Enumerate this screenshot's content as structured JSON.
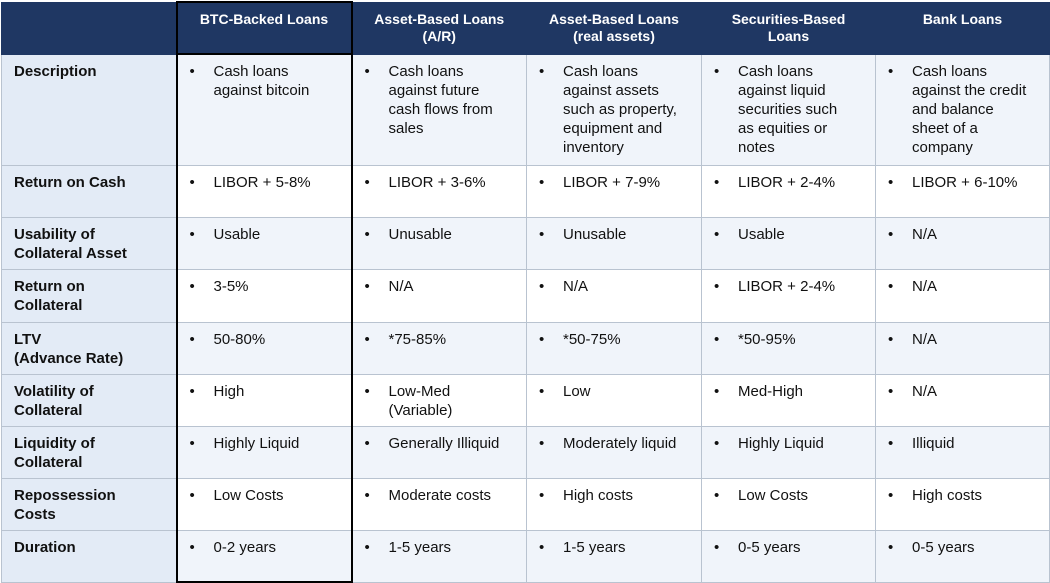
{
  "headers": {
    "corner": "",
    "columns": [
      [
        "BTC-Backed Loans"
      ],
      [
        "Asset-Based Loans",
        "(A/R)"
      ],
      [
        "Asset-Based Loans",
        "(real assets)"
      ],
      [
        "Securities-Based",
        "Loans"
      ],
      [
        "Bank Loans"
      ]
    ]
  },
  "bullet": "•",
  "rows": [
    {
      "label": [
        "Description"
      ],
      "cells": [
        [
          "Cash loans",
          "against bitcoin"
        ],
        [
          "Cash loans",
          "against future",
          "cash flows from",
          "sales"
        ],
        [
          "Cash loans",
          "against assets",
          "such as property,",
          "equipment and",
          "inventory"
        ],
        [
          "Cash loans",
          "against liquid",
          "securities such",
          "as equities or",
          "notes"
        ],
        [
          "Cash loans",
          "against the credit",
          "and balance",
          "sheet of a",
          "company"
        ]
      ]
    },
    {
      "label": [
        "Return on Cash"
      ],
      "cells": [
        [
          "LIBOR + 5-8%"
        ],
        [
          "LIBOR + 3-6%"
        ],
        [
          "LIBOR + 7-9%"
        ],
        [
          "LIBOR + 2-4%"
        ],
        [
          "LIBOR + 6-10%"
        ]
      ]
    },
    {
      "label": [
        "Usability of",
        "Collateral Asset"
      ],
      "cells": [
        [
          "Usable"
        ],
        [
          "Unusable"
        ],
        [
          "Unusable"
        ],
        [
          "Usable"
        ],
        [
          "N/A"
        ]
      ]
    },
    {
      "label": [
        "Return on",
        "Collateral"
      ],
      "cells": [
        [
          "3-5%"
        ],
        [
          "N/A"
        ],
        [
          "N/A"
        ],
        [
          "LIBOR + 2-4%"
        ],
        [
          "N/A"
        ]
      ]
    },
    {
      "label": [
        "LTV",
        "(Advance Rate)"
      ],
      "cells": [
        [
          "50-80%"
        ],
        [
          "*75-85%"
        ],
        [
          "*50-75%"
        ],
        [
          "*50-95%"
        ],
        [
          "N/A"
        ]
      ]
    },
    {
      "label": [
        "Volatility of",
        "Collateral"
      ],
      "cells": [
        [
          "High"
        ],
        [
          "Low-Med",
          "(Variable)"
        ],
        [
          "Low"
        ],
        [
          "Med-High"
        ],
        [
          "N/A"
        ]
      ]
    },
    {
      "label": [
        "Liquidity of",
        "Collateral"
      ],
      "cells": [
        [
          "Highly Liquid"
        ],
        [
          "Generally Illiquid"
        ],
        [
          "Moderately liquid"
        ],
        [
          "Highly Liquid"
        ],
        [
          "Illiquid"
        ]
      ]
    },
    {
      "label": [
        "Repossession",
        "Costs"
      ],
      "cells": [
        [
          "Low Costs"
        ],
        [
          "Moderate costs"
        ],
        [
          "High costs"
        ],
        [
          "Low Costs"
        ],
        [
          "High costs"
        ]
      ]
    },
    {
      "label": [
        "Duration"
      ],
      "cells": [
        [
          "0-2 years"
        ],
        [
          "1-5 years"
        ],
        [
          "1-5 years"
        ],
        [
          "0-5 years"
        ],
        [
          "0-5 years"
        ]
      ]
    }
  ]
}
